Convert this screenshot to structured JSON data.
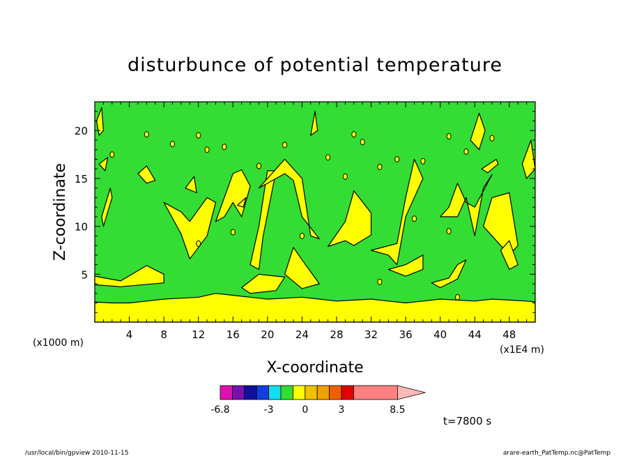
{
  "chart_data": {
    "type": "heatmap",
    "title": "disturbunce of potential temperature",
    "xlabel": "X-coordinate",
    "ylabel": "Z-coordinate",
    "xlim": [
      0,
      51
    ],
    "ylim": [
      0,
      23
    ],
    "x_unit_label": "(x1E4 m)",
    "y_unit_label": "(x1000 m)",
    "x_ticks": [
      4,
      8,
      12,
      16,
      20,
      24,
      28,
      32,
      36,
      40,
      44,
      48
    ],
    "y_ticks": [
      5,
      10,
      15,
      20
    ],
    "background_level_color": "#33dd33",
    "positive_level_color": "#ffff00",
    "colorbar": {
      "colors": [
        "#e010b0",
        "#7a10b0",
        "#1010a0",
        "#1040e0",
        "#10e0f0",
        "#33dd33",
        "#ffff00",
        "#f0c000",
        "#f0a000",
        "#f06000",
        "#e00000",
        "#ff8080"
      ],
      "tick_labels": [
        "-6.8",
        "-3",
        "0",
        "3",
        "8.5"
      ],
      "extend": "max"
    },
    "bottom_band_top_z": [
      2.1,
      2.0,
      2.0,
      2.2,
      2.4,
      2.5,
      2.6,
      3.0,
      2.8,
      2.6,
      2.4,
      2.5,
      2.6,
      2.4,
      2.2,
      2.3,
      2.4,
      2.2,
      2.0,
      2.2,
      2.4,
      2.3,
      2.2,
      2.4,
      2.3,
      2.2,
      2.1
    ],
    "bottom_band_x": [
      0,
      2,
      4,
      6,
      8,
      10,
      12,
      14,
      16,
      18,
      20,
      22,
      24,
      26,
      28,
      30,
      32,
      34,
      36,
      38,
      40,
      42,
      44,
      46,
      48,
      50,
      51
    ]
  },
  "annotations": {
    "time": "t=7800 s",
    "footer_left": "/usr/local/bin/gpview  2010-11-15",
    "footer_right": "arare-earth_PatTemp.nc@PatTemp"
  }
}
